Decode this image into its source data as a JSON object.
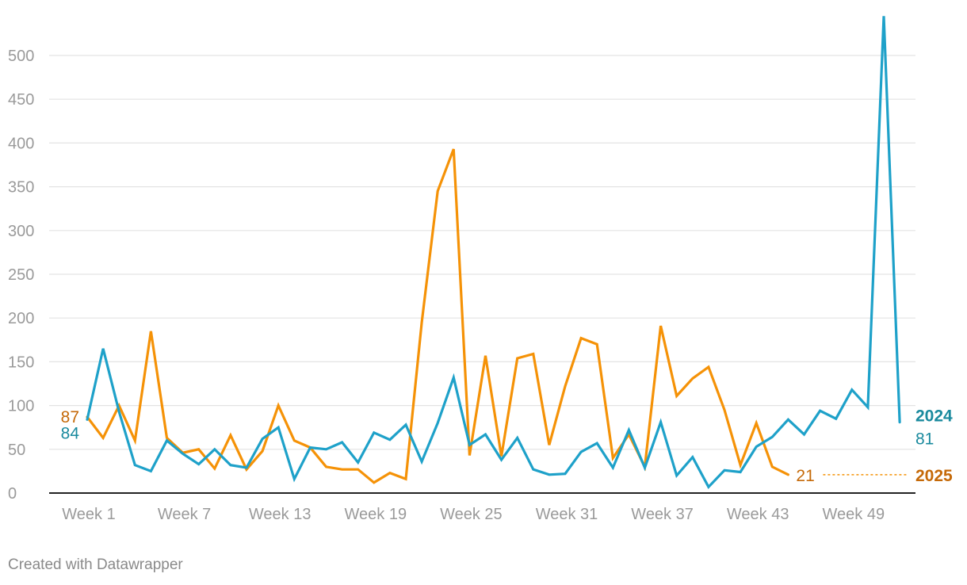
{
  "chart_data": {
    "type": "line",
    "title": "",
    "xlabel": "",
    "ylabel": "",
    "ylim": [
      0,
      545
    ],
    "y_ticks": [
      0,
      50,
      100,
      150,
      200,
      250,
      300,
      350,
      400,
      450,
      500
    ],
    "x_count": 52,
    "x_tick_labels": [
      {
        "index": 1,
        "label": "Week 1"
      },
      {
        "index": 7,
        "label": "Week 7"
      },
      {
        "index": 13,
        "label": "Week 13"
      },
      {
        "index": 19,
        "label": "Week 19"
      },
      {
        "index": 25,
        "label": "Week 25"
      },
      {
        "index": 31,
        "label": "Week 31"
      },
      {
        "index": 37,
        "label": "Week 37"
      },
      {
        "index": 43,
        "label": "Week 43"
      },
      {
        "index": 49,
        "label": "Week 49"
      }
    ],
    "grid": true,
    "series": [
      {
        "name": "2024",
        "color": "#1ea1c9",
        "label_color": "#1a8a9e",
        "values": [
          84,
          165,
          93,
          32,
          25,
          60,
          45,
          33,
          50,
          32,
          29,
          62,
          75,
          16,
          52,
          50,
          58,
          35,
          69,
          61,
          78,
          36,
          80,
          132,
          55,
          67,
          38,
          63,
          27,
          21,
          22,
          47,
          57,
          29,
          72,
          29,
          81,
          20,
          41,
          7,
          26,
          24,
          53,
          64,
          84,
          67,
          94,
          85,
          118,
          98,
          545,
          81
        ],
        "first_label": "84",
        "last_label": "81"
      },
      {
        "name": "2025",
        "color": "#f59207",
        "label_color": "#c56908",
        "values": [
          87,
          63,
          100,
          60,
          185,
          63,
          46,
          50,
          28,
          66,
          27,
          48,
          100,
          60,
          52,
          30,
          27,
          27,
          12,
          23,
          16,
          195,
          345,
          393,
          43,
          157,
          42,
          154,
          159,
          55,
          122,
          177,
          170,
          40,
          67,
          30,
          191,
          111,
          131,
          144,
          95,
          32,
          80,
          30,
          21
        ],
        "first_label": "87",
        "last_label": "21"
      }
    ]
  },
  "footer": {
    "credit": "Created with Datawrapper"
  }
}
